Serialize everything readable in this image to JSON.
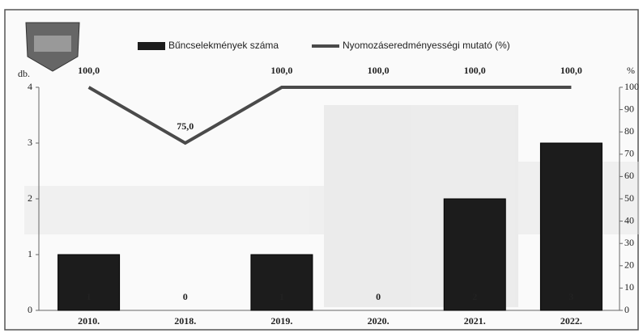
{
  "chart_data": {
    "type": "bar",
    "categories": [
      "2010.",
      "2018.",
      "2019.",
      "2020.",
      "2021.",
      "2022."
    ],
    "ylabel": "db.",
    "y2label": "%",
    "ylim": [
      0,
      4
    ],
    "yticks": [
      0,
      1,
      2,
      3,
      4
    ],
    "y2lim": [
      0,
      100
    ],
    "y2ticks": [
      0,
      10,
      20,
      30,
      40,
      50,
      60,
      70,
      80,
      90,
      100
    ],
    "legend": "top",
    "series": [
      {
        "name": "Bűncselekmények száma",
        "type": "bar",
        "color": "#1c1c1c",
        "values": [
          1,
          0,
          1,
          0,
          2,
          3
        ]
      },
      {
        "name": "Nyomozáseredményességi mutató (%)",
        "type": "line",
        "color": "#4a4a4a",
        "axis": "y2",
        "values": [
          100,
          75,
          100,
          100,
          100,
          100
        ],
        "value_labels": [
          "100,0",
          "75,0",
          "100,0",
          "100,0",
          "100,0",
          "100,0"
        ]
      }
    ]
  }
}
